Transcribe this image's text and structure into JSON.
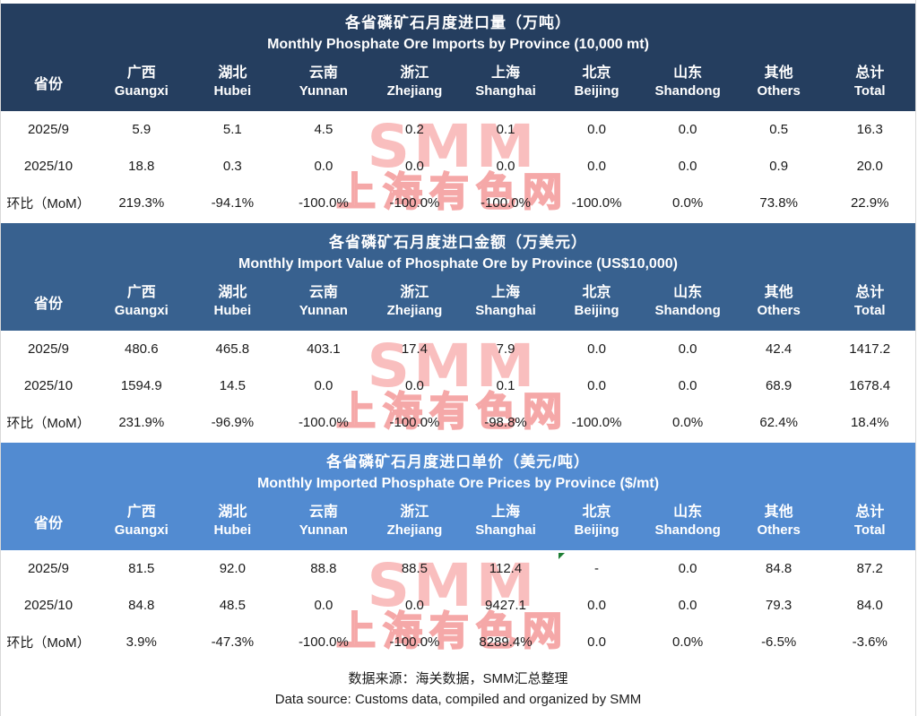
{
  "watermark": {
    "line1": "SMM",
    "line2": "上海有色网",
    "color": "#f5a8a8"
  },
  "columns": {
    "province_label": "省份",
    "provinces": [
      {
        "cn": "广西",
        "en": "Guangxi"
      },
      {
        "cn": "湖北",
        "en": "Hubei"
      },
      {
        "cn": "云南",
        "en": "Yunnan"
      },
      {
        "cn": "浙江",
        "en": "Zhejiang"
      },
      {
        "cn": "上海",
        "en": "Shanghai"
      },
      {
        "cn": "北京",
        "en": "Beijing"
      },
      {
        "cn": "山东",
        "en": "Shandong"
      },
      {
        "cn": "其他",
        "en": "Others"
      },
      {
        "cn": "总计",
        "en": "Total"
      }
    ]
  },
  "tables": [
    {
      "id": "import-volume",
      "title_cn": "各省磷矿石月度进口量（万吨）",
      "title_en": "Monthly Phosphate Ore Imports by Province (10,000 mt)",
      "header_color": "#253e5f",
      "rows": [
        {
          "label": "2025/9",
          "values": [
            "5.9",
            "5.1",
            "4.5",
            "0.2",
            "0.1",
            "0.0",
            "0.0",
            "0.5",
            "16.3"
          ]
        },
        {
          "label": "2025/10",
          "values": [
            "18.8",
            "0.3",
            "0.0",
            "0.0",
            "0.0",
            "0.0",
            "0.0",
            "0.9",
            "20.0"
          ]
        },
        {
          "label": "环比（MoM）",
          "values": [
            "219.3%",
            "-94.1%",
            "-100.0%",
            "-100.0%",
            "-100.0%",
            "-100.0%",
            "0.0%",
            "73.8%",
            "22.9%"
          ]
        }
      ]
    },
    {
      "id": "import-value",
      "title_cn": "各省磷矿石月度进口金额（万美元）",
      "title_en": "Monthly Import Value of Phosphate Ore by Province (US$10,000)",
      "header_color": "#38618f",
      "rows": [
        {
          "label": "2025/9",
          "values": [
            "480.6",
            "465.8",
            "403.1",
            "17.4",
            "7.9",
            "0.0",
            "0.0",
            "42.4",
            "1417.2"
          ]
        },
        {
          "label": "2025/10",
          "values": [
            "1594.9",
            "14.5",
            "0.0",
            "0.0",
            "0.1",
            "0.0",
            "0.0",
            "68.9",
            "1678.4"
          ]
        },
        {
          "label": "环比（MoM）",
          "values": [
            "231.9%",
            "-96.9%",
            "-100.0%",
            "-100.0%",
            "-98.8%",
            "-100.0%",
            "0.0%",
            "62.4%",
            "18.4%"
          ]
        }
      ]
    },
    {
      "id": "import-price",
      "title_cn": "各省磷矿石月度进口单价（美元/吨）",
      "title_en": "Monthly Imported Phosphate Ore Prices by Province ($/mt)",
      "header_color": "#528bd1",
      "flag": {
        "row": 0,
        "col": 5
      },
      "rows": [
        {
          "label": "2025/9",
          "values": [
            "81.5",
            "92.0",
            "88.8",
            "88.5",
            "112.4",
            "-",
            "0.0",
            "84.8",
            "87.2"
          ]
        },
        {
          "label": "2025/10",
          "values": [
            "84.8",
            "48.5",
            "0.0",
            "0.0",
            "9427.1",
            "0.0",
            "0.0",
            "79.3",
            "84.0"
          ]
        },
        {
          "label": "环比（MoM）",
          "values": [
            "3.9%",
            "-47.3%",
            "-100.0%",
            "-100.0%",
            "8289.4%",
            "0.0",
            "0.0%",
            "-6.5%",
            "-3.6%"
          ]
        }
      ]
    }
  ],
  "footer": {
    "line_cn": "数据来源：海关数据，SMM汇总整理",
    "line_en": "Data source: Customs data, compiled and organized by SMM"
  }
}
